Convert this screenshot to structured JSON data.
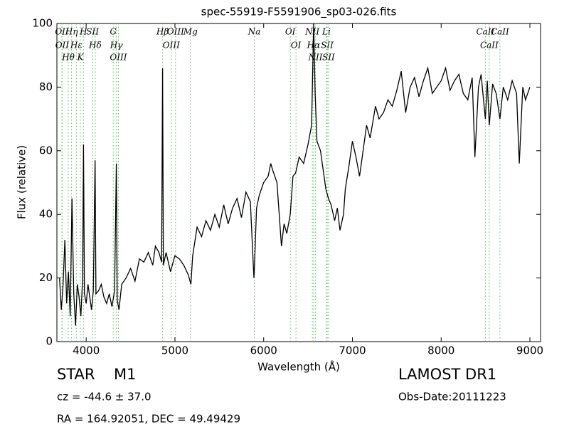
{
  "chart_data": {
    "type": "line",
    "title": "spec-55919-F5591906_sp03-026.fits",
    "xlabel": "Wavelength (Å)",
    "ylabel": "Flux (relative)",
    "xlim": [
      3670,
      9120
    ],
    "ylim": [
      0,
      100
    ],
    "xticks": [
      4000,
      5000,
      6000,
      7000,
      8000,
      9000
    ],
    "yticks": [
      0,
      20,
      40,
      60,
      80,
      100
    ],
    "series": [
      {
        "color": "#000000",
        "x": [
          3700,
          3720,
          3740,
          3760,
          3780,
          3800,
          3820,
          3840,
          3860,
          3880,
          3900,
          3920,
          3940,
          3960,
          3970,
          3980,
          4000,
          4020,
          4040,
          4060,
          4080,
          4100,
          4110,
          4140,
          4170,
          4200,
          4230,
          4260,
          4290,
          4320,
          4340,
          4350,
          4370,
          4400,
          4450,
          4500,
          4550,
          4600,
          4650,
          4700,
          4750,
          4780,
          4820,
          4850,
          4861,
          4870,
          4900,
          4950,
          5000,
          5050,
          5100,
          5150,
          5180,
          5200,
          5250,
          5300,
          5350,
          5400,
          5450,
          5500,
          5550,
          5600,
          5650,
          5700,
          5750,
          5800,
          5850,
          5890,
          5894,
          5920,
          5950,
          6000,
          6050,
          6080,
          6100,
          6150,
          6180,
          6200,
          6230,
          6260,
          6300,
          6330,
          6360,
          6400,
          6450,
          6500,
          6540,
          6563,
          6580,
          6600,
          6640,
          6680,
          6700,
          6730,
          6760,
          6800,
          6830,
          6860,
          6900,
          6920,
          6960,
          7000,
          7040,
          7080,
          7120,
          7160,
          7200,
          7260,
          7300,
          7350,
          7400,
          7450,
          7500,
          7550,
          7600,
          7650,
          7700,
          7750,
          7800,
          7850,
          7900,
          7950,
          8000,
          8050,
          8100,
          8150,
          8200,
          8250,
          8300,
          8350,
          8380,
          8420,
          8450,
          8498,
          8520,
          8542,
          8580,
          8620,
          8662,
          8700,
          8750,
          8800,
          8850,
          8880,
          8920,
          8950,
          9000
        ],
        "values": [
          20,
          10,
          18,
          32,
          12,
          22,
          8,
          45,
          15,
          5,
          18,
          14,
          8,
          20,
          62,
          15,
          12,
          18,
          14,
          10,
          16,
          57,
          15,
          16,
          18,
          14,
          12,
          15,
          11,
          16,
          56,
          13,
          10,
          18,
          20,
          23,
          19,
          26,
          25,
          28,
          24,
          30,
          28,
          25,
          86,
          24,
          28,
          22,
          27,
          26,
          24,
          21,
          18,
          27,
          36,
          33,
          38,
          35,
          40,
          36,
          43,
          37,
          42,
          45,
          39,
          47,
          44,
          20,
          22,
          42,
          46,
          50,
          52,
          56,
          54,
          50,
          38,
          30,
          37,
          34,
          40,
          52,
          53,
          58,
          56,
          62,
          68,
          100,
          78,
          63,
          60,
          52,
          48,
          45,
          43,
          38,
          42,
          35,
          40,
          48,
          55,
          63,
          58,
          52,
          60,
          68,
          64,
          74,
          70,
          72,
          76,
          74,
          79,
          85,
          72,
          80,
          83,
          77,
          82,
          86,
          78,
          80,
          82,
          86,
          79,
          82,
          84,
          78,
          76,
          83,
          58,
          80,
          84,
          70,
          82,
          68,
          81,
          78,
          70,
          80,
          76,
          82,
          78,
          56,
          80,
          76,
          80
        ]
      }
    ],
    "spectral_lines": [
      {
        "label": "OII",
        "x": 3726
      },
      {
        "label": "OII",
        "x": 3729
      },
      {
        "label": "Hθ",
        "x": 3798
      },
      {
        "label": "Hη",
        "x": 3835
      },
      {
        "label": "Hε",
        "x": 3889
      },
      {
        "label": "K",
        "x": 3934
      },
      {
        "label": "H",
        "x": 3969
      },
      {
        "label": "SII",
        "x": 4072
      },
      {
        "label": "Hδ",
        "x": 4102
      },
      {
        "label": "G",
        "x": 4305
      },
      {
        "label": "Hγ",
        "x": 4340
      },
      {
        "label": "OIII",
        "x": 4363
      },
      {
        "label": "Hβ",
        "x": 4861
      },
      {
        "label": "OIII",
        "x": 4959
      },
      {
        "label": "OIII",
        "x": 5007
      },
      {
        "label": "Mg",
        "x": 5175
      },
      {
        "label": "Na",
        "x": 5894
      },
      {
        "label": "OI",
        "x": 6300
      },
      {
        "label": "OI",
        "x": 6364
      },
      {
        "label": "NII",
        "x": 6548
      },
      {
        "label": "Hα",
        "x": 6563
      },
      {
        "label": "NII",
        "x": 6583
      },
      {
        "label": "Li",
        "x": 6707
      },
      {
        "label": "SII",
        "x": 6716
      },
      {
        "label": "SII",
        "x": 6731
      },
      {
        "label": "CaII",
        "x": 8498
      },
      {
        "label": "CaII",
        "x": 8542
      },
      {
        "label": "CaII",
        "x": 8662
      }
    ],
    "line_color": "#5fb85f",
    "footer": {
      "object_class": "STAR",
      "subclass": "M1",
      "cz": "cz = -44.6 ± 37.0",
      "coords": "RA = 164.92051, DEC = 49.49429",
      "survey": "LAMOST DR1",
      "obs_date": "Obs-Date:20111223"
    }
  }
}
